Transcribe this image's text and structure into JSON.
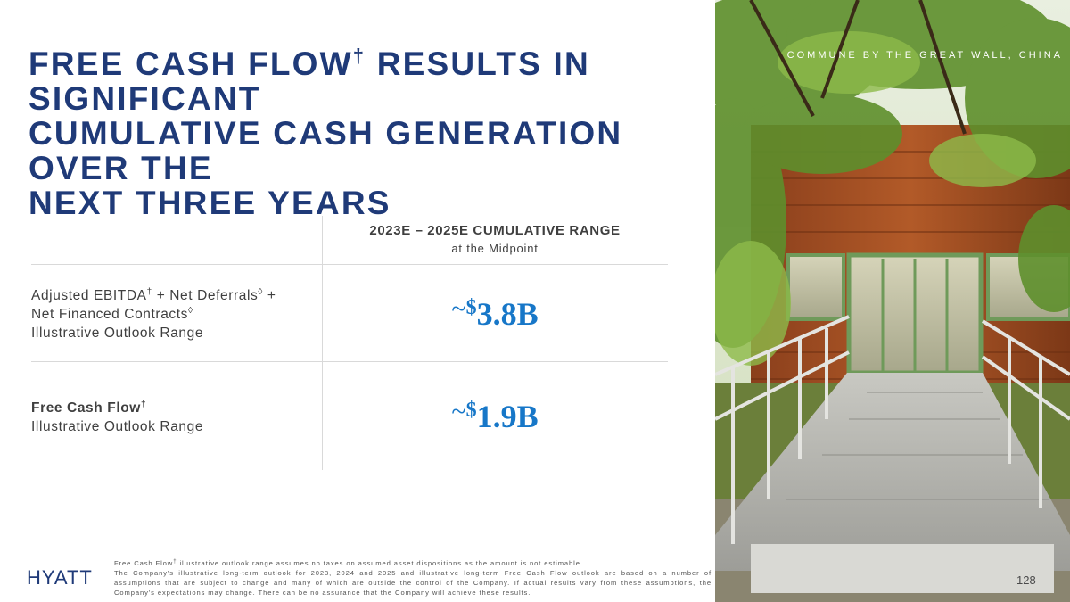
{
  "title": {
    "line1_a": "FREE CASH FLOW",
    "line1_mark": "†",
    "line1_b": " RESULTS IN SIGNIFICANT",
    "line2": "CUMULATIVE CASH GENERATION OVER THE",
    "line3": "NEXT THREE YEARS"
  },
  "table": {
    "header": "2023E – 2025E CUMULATIVE  RANGE",
    "subheader": "at the Midpoint",
    "rows": [
      {
        "label_a": "Adjusted  EBITDA",
        "mark1": "†",
        "label_b": "  + Net  Deferrals",
        "mark2": "◊",
        "label_c": "   +",
        "label_d": "Net Financed Contracts",
        "mark3": "◊",
        "label_e": "Illustrative  Outlook Range",
        "tilde": "~",
        "currency": "$",
        "value": "3.8B"
      },
      {
        "label_a": "Free Cash Flow",
        "mark1": "†",
        "label_b": "Illustrative  Outlook Range",
        "tilde": "~",
        "currency": "$",
        "value": "1.9B"
      }
    ]
  },
  "photo": {
    "caption": "COMMUNE BY THE GREAT WALL, CHINA"
  },
  "footer": {
    "logo_text": "HYATT",
    "page_number": "128",
    "note1_a": "Free  Cash  Flow",
    "note1_mark": "†",
    "note1_b": " illustrative  outlook  range  assumes  no taxes  on assumed  asset  dispositions  as the  amount  is not  estimable.",
    "note2": "The Company's  illustrative  long-term  outlook  for 2023,  2024 and 2025 and illustrative  long-term  Free Cash  Flow  outlook  are based  on a number  of assumptions  that are subject  to change  and many  of which are outside  the control  of the Company.  If actual  results  vary  from  these  assumptions,  the Company's  expectations  may change.  There  can be no assurance  that  the Company  will achieve  these  results."
  },
  "colors": {
    "title": "#1f3a78",
    "value": "#1777c8",
    "text": "#3f3f3f",
    "rule": "#d9d9d9"
  }
}
